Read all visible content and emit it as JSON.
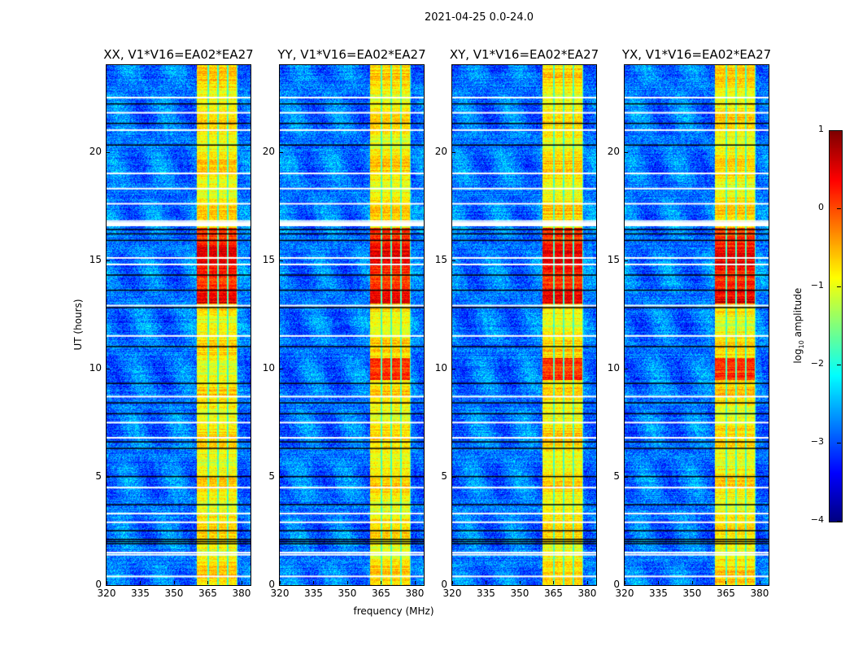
{
  "suptitle": "2021-04-25 0.0-24.0",
  "chart_data": [
    {
      "type": "heatmap",
      "title": "XX, V1*V16=EA02*EA27",
      "hot_hours": [
        [
          13,
          16.5
        ]
      ]
    },
    {
      "type": "heatmap",
      "title": "YY, V1*V16=EA02*EA27",
      "hot_hours": [
        [
          13,
          16.5
        ],
        [
          9.5,
          10.5
        ]
      ]
    },
    {
      "type": "heatmap",
      "title": "XY, V1*V16=EA02*EA27",
      "hot_hours": [
        [
          13,
          16.5
        ],
        [
          9.5,
          10.5
        ]
      ]
    },
    {
      "type": "heatmap",
      "title": "YX, V1*V16=EA02*EA27",
      "hot_hours": [
        [
          13,
          16.5
        ],
        [
          9.5,
          10.5
        ]
      ]
    }
  ],
  "shared": {
    "xlabel": "frequency (MHz)",
    "ylabel": "UT (hours)",
    "xlim": [
      320,
      384
    ],
    "ylim": [
      0,
      24
    ],
    "xticks": [
      "320",
      "335",
      "350",
      "365",
      "380"
    ],
    "xtick_values": [
      320,
      335,
      350,
      365,
      380
    ],
    "yticks": [
      "0",
      "5",
      "10",
      "15",
      "20"
    ],
    "ytick_values": [
      0,
      5,
      10,
      15,
      20
    ],
    "rfi_band_mhz": [
      [
        360,
        364.6
      ],
      [
        365.3,
        368.9
      ],
      [
        369.6,
        373.2
      ],
      [
        373.9,
        377.5
      ]
    ],
    "flagged_hours_white": [
      22.5,
      21.8,
      21.0,
      19.0,
      18.3,
      17.6,
      16.8,
      16.7,
      16.6,
      15.1,
      14.8,
      12.9,
      11.5,
      8.7,
      7.5,
      6.8,
      4.5,
      3.3,
      2.9,
      1.5,
      1.4,
      0.4
    ],
    "flagged_hours_black": [
      22.2,
      21.3,
      20.3,
      16.4,
      16.2,
      15.9,
      14.3,
      13.6,
      12.8,
      11.0,
      9.3,
      8.4,
      7.9,
      6.6,
      6.3,
      5.0,
      3.7,
      2.5,
      2.1,
      2.0,
      1.9
    ],
    "background_log_amp": -2.8,
    "band_log_amp": -0.8
  },
  "colorbar": {
    "label": "log",
    "label_sub": "10",
    "label_rest": " amplitude",
    "range": [
      -4,
      1
    ],
    "ticks": [
      "1",
      "0",
      "−1",
      "−2",
      "−3",
      "−4"
    ],
    "tick_values": [
      1,
      0,
      -1,
      -2,
      -3,
      -4
    ]
  }
}
